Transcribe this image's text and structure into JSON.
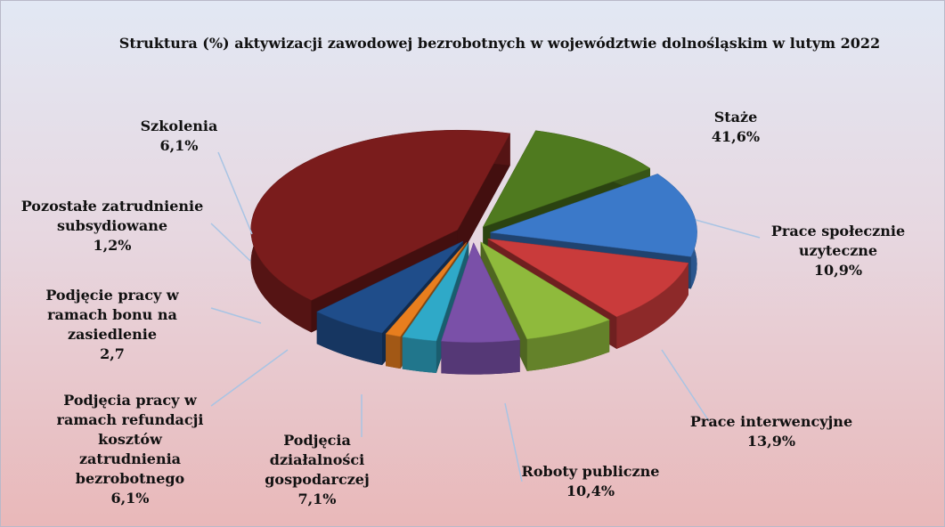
{
  "chart_data": {
    "type": "pie",
    "title": "Struktura (%) aktywizacji zawodowej bezrobotnych w województwie dolnośląskim w lutym 2022",
    "categories": [
      "Staże",
      "Prace społecznie uzyteczne",
      "Prace interwencyjne",
      "Roboty publiczne",
      "Podjęcia działalności gospodarczej",
      "Podjęcia pracy w ramach refundacji kosztów zatrudnienia bezrobotnego",
      "Podjęcie pracy w ramach bonu na zasiedlenie",
      "Pozostałe zatrudnienie subsydiowane",
      "Szkolenia"
    ],
    "values": [
      41.6,
      10.9,
      13.9,
      10.4,
      7.1,
      6.1,
      2.7,
      1.2,
      6.1
    ],
    "value_labels": [
      "41,6%",
      "10,9%",
      "13,9%",
      "10,4%",
      "7,1%",
      "6,1%",
      "2,7",
      "1,2%",
      "6,1%"
    ],
    "colors": [
      "#7a1c1c",
      "#4f7a1f",
      "#3b79c9",
      "#c93b3b",
      "#8fba3c",
      "#7a50a8",
      "#2fa9c8",
      "#e87e1e",
      "#1f4d8a"
    ]
  }
}
